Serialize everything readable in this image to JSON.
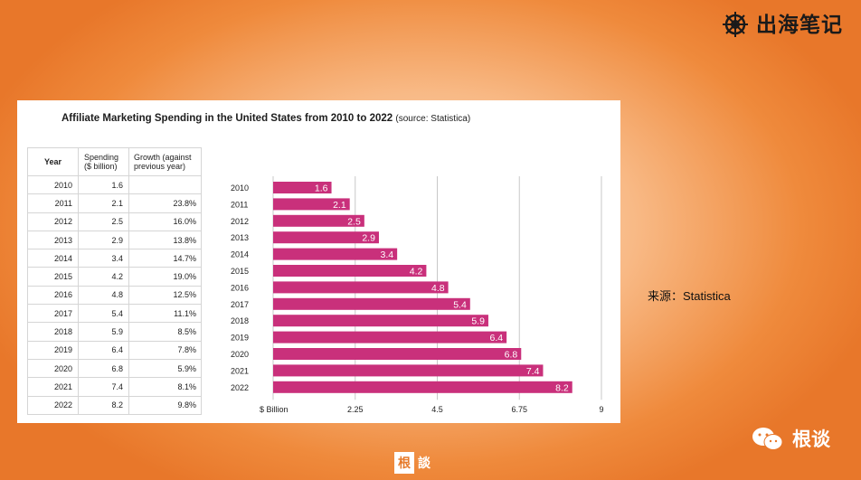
{
  "brand": {
    "name": "出海笔记",
    "icon": "ship-wheel-icon"
  },
  "source_note": "来源：Statistica",
  "wechat": {
    "name": "根谈",
    "icon": "wechat-icon"
  },
  "watermark": {
    "box": "根",
    "text": "談"
  },
  "table": {
    "headers": {
      "year": "Year",
      "spending_line1": "Spending",
      "spending_line2": "($ billion)",
      "growth_line1": "Growth (against",
      "growth_line2": "previous year)"
    },
    "rows": [
      {
        "year": "2010",
        "spending": "1.6",
        "growth": ""
      },
      {
        "year": "2011",
        "spending": "2.1",
        "growth": "23.8%"
      },
      {
        "year": "2012",
        "spending": "2.5",
        "growth": "16.0%"
      },
      {
        "year": "2013",
        "spending": "2.9",
        "growth": "13.8%"
      },
      {
        "year": "2014",
        "spending": "3.4",
        "growth": "14.7%"
      },
      {
        "year": "2015",
        "spending": "4.2",
        "growth": "19.0%"
      },
      {
        "year": "2016",
        "spending": "4.8",
        "growth": "12.5%"
      },
      {
        "year": "2017",
        "spending": "5.4",
        "growth": "11.1%"
      },
      {
        "year": "2018",
        "spending": "5.9",
        "growth": "8.5%"
      },
      {
        "year": "2019",
        "spending": "6.4",
        "growth": "7.8%"
      },
      {
        "year": "2020",
        "spending": "6.8",
        "growth": "5.9%"
      },
      {
        "year": "2021",
        "spending": "7.4",
        "growth": "8.1%"
      },
      {
        "year": "2022",
        "spending": "8.2",
        "growth": "9.8%"
      }
    ]
  },
  "chart_data": {
    "type": "bar",
    "orientation": "horizontal",
    "title": "Affiliate Marketing Spending in the United States from 2010 to 2022",
    "subtitle": "(source: Statistica)",
    "categories": [
      "2010",
      "2011",
      "2012",
      "2013",
      "2014",
      "2015",
      "2016",
      "2017",
      "2018",
      "2019",
      "2020",
      "2021",
      "2022"
    ],
    "values": [
      1.6,
      2.1,
      2.5,
      2.9,
      3.4,
      4.2,
      4.8,
      5.4,
      5.9,
      6.4,
      6.8,
      7.4,
      8.2
    ],
    "xlim": [
      0,
      9
    ],
    "xticks": [
      0,
      2.25,
      4.5,
      6.75,
      9
    ],
    "xtick_labels": [
      "$ Billion",
      "2.25",
      "4.5",
      "6.75",
      "9"
    ],
    "grid": true,
    "bar_color": "#c9307b"
  }
}
